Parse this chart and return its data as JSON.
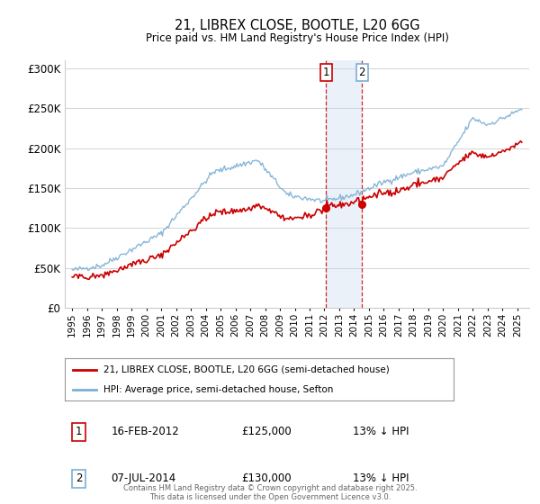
{
  "title": "21, LIBREX CLOSE, BOOTLE, L20 6GG",
  "subtitle": "Price paid vs. HM Land Registry's House Price Index (HPI)",
  "yticks": [
    0,
    50000,
    100000,
    150000,
    200000,
    250000,
    300000
  ],
  "ytick_labels": [
    "£0",
    "£50K",
    "£100K",
    "£150K",
    "£200K",
    "£250K",
    "£300K"
  ],
  "line_color_red": "#cc0000",
  "line_color_blue": "#7bafd4",
  "background_color": "#ffffff",
  "grid_color": "#cccccc",
  "ann1_x": 2012.12,
  "ann1_y": 125000,
  "ann2_x": 2014.53,
  "ann2_y": 130000,
  "annotation1": {
    "label": "1",
    "date": "16-FEB-2012",
    "price": "£125,000",
    "note": "13% ↓ HPI"
  },
  "annotation2": {
    "label": "2",
    "date": "07-JUL-2014",
    "price": "£130,000",
    "note": "13% ↓ HPI"
  },
  "legend_entry1": "21, LIBREX CLOSE, BOOTLE, L20 6GG (semi-detached house)",
  "legend_entry2": "HPI: Average price, semi-detached house, Sefton",
  "footer": "Contains HM Land Registry data © Crown copyright and database right 2025.\nThis data is licensed under the Open Government Licence v3.0.",
  "shade_color": "#c5d8ee",
  "vline_color": "#cc0000",
  "xlim": [
    1994.5,
    2025.8
  ],
  "ylim": [
    0,
    310000
  ]
}
